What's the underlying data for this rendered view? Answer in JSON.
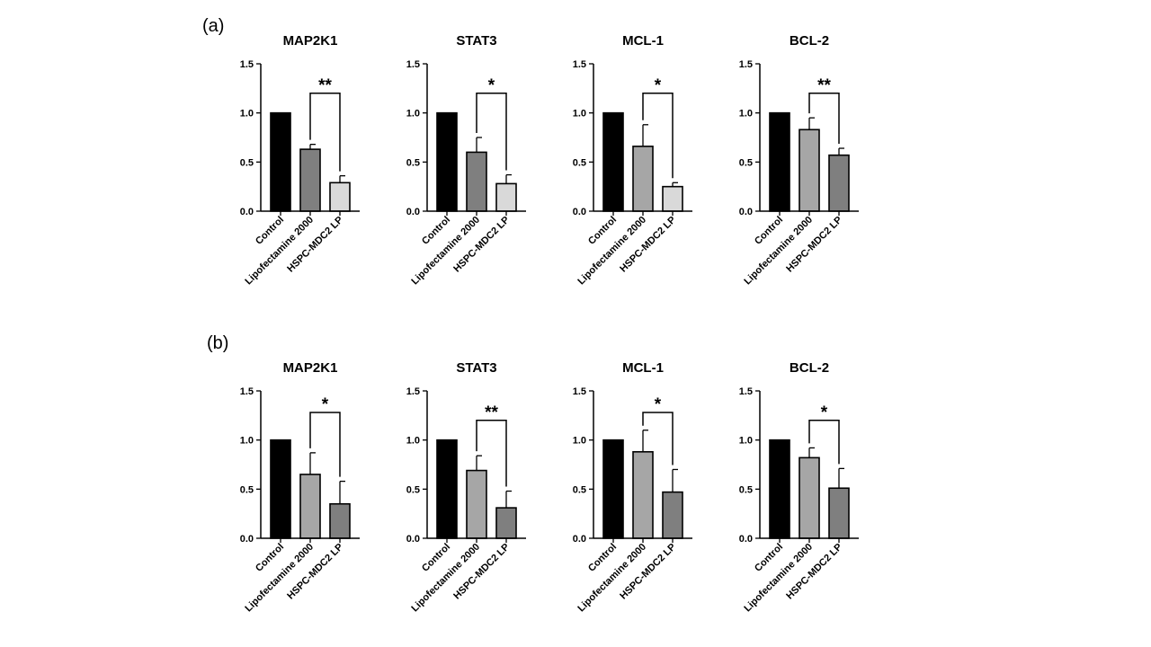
{
  "panels": [
    {
      "label": "(a)"
    },
    {
      "label": "(b)"
    }
  ],
  "categories": [
    "Control",
    "Lipofectamine 2000",
    "HSPC-MDC2 LP"
  ],
  "yticks": [
    "0.0",
    "0.5",
    "1.0",
    "1.5"
  ],
  "chart_data": [
    {
      "type": "bar",
      "panel": "(a)",
      "title": "MAP2K1",
      "categories": [
        "Control",
        "Lipofectamine 2000",
        "HSPC-MDC2 LP"
      ],
      "values": [
        1.0,
        0.63,
        0.29
      ],
      "errors": [
        0,
        0.05,
        0.07
      ],
      "colors": [
        "#000000",
        "#7f7f7f",
        "#d9d9d9"
      ],
      "ylim": [
        0,
        1.5
      ],
      "significance": {
        "from": 1,
        "to": 2,
        "label": "**",
        "y": 1.2
      }
    },
    {
      "type": "bar",
      "panel": "(a)",
      "title": "STAT3",
      "categories": [
        "Control",
        "Lipofectamine 2000",
        "HSPC-MDC2 LP"
      ],
      "values": [
        1.0,
        0.6,
        0.28
      ],
      "errors": [
        0,
        0.15,
        0.09
      ],
      "colors": [
        "#000000",
        "#7f7f7f",
        "#d9d9d9"
      ],
      "ylim": [
        0,
        1.5
      ],
      "significance": {
        "from": 1,
        "to": 2,
        "label": "*",
        "y": 1.2
      }
    },
    {
      "type": "bar",
      "panel": "(a)",
      "title": "MCL-1",
      "categories": [
        "Control",
        "Lipofectamine 2000",
        "HSPC-MDC2 LP"
      ],
      "values": [
        1.0,
        0.66,
        0.25
      ],
      "errors": [
        0,
        0.22,
        0.04
      ],
      "colors": [
        "#000000",
        "#a6a6a6",
        "#d9d9d9"
      ],
      "ylim": [
        0,
        1.5
      ],
      "significance": {
        "from": 1,
        "to": 2,
        "label": "*",
        "y": 1.2
      }
    },
    {
      "type": "bar",
      "panel": "(a)",
      "title": "BCL-2",
      "categories": [
        "Control",
        "Lipofectamine 2000",
        "HSPC-MDC2 LP"
      ],
      "values": [
        1.0,
        0.83,
        0.57
      ],
      "errors": [
        0,
        0.12,
        0.07
      ],
      "colors": [
        "#000000",
        "#a6a6a6",
        "#7f7f7f"
      ],
      "ylim": [
        0,
        1.5
      ],
      "significance": {
        "from": 1,
        "to": 2,
        "label": "**",
        "y": 1.2
      }
    },
    {
      "type": "bar",
      "panel": "(b)",
      "title": "MAP2K1",
      "categories": [
        "Control",
        "Lipofectamine 2000",
        "HSPC-MDC2 LP"
      ],
      "values": [
        1.0,
        0.65,
        0.35
      ],
      "errors": [
        0,
        0.22,
        0.23
      ],
      "colors": [
        "#000000",
        "#a6a6a6",
        "#7f7f7f"
      ],
      "ylim": [
        0,
        1.5
      ],
      "significance": {
        "from": 1,
        "to": 2,
        "label": "*",
        "y": 1.28
      }
    },
    {
      "type": "bar",
      "panel": "(b)",
      "title": "STAT3",
      "categories": [
        "Control",
        "Lipofectamine 2000",
        "HSPC-MDC2 LP"
      ],
      "values": [
        1.0,
        0.69,
        0.31
      ],
      "errors": [
        0,
        0.15,
        0.17
      ],
      "colors": [
        "#000000",
        "#a6a6a6",
        "#7f7f7f"
      ],
      "ylim": [
        0,
        1.5
      ],
      "significance": {
        "from": 1,
        "to": 2,
        "label": "**",
        "y": 1.2
      }
    },
    {
      "type": "bar",
      "panel": "(b)",
      "title": "MCL-1",
      "categories": [
        "Control",
        "Lipofectamine 2000",
        "HSPC-MDC2 LP"
      ],
      "values": [
        1.0,
        0.88,
        0.47
      ],
      "errors": [
        0,
        0.22,
        0.23
      ],
      "colors": [
        "#000000",
        "#a6a6a6",
        "#7f7f7f"
      ],
      "ylim": [
        0,
        1.5
      ],
      "significance": {
        "from": 1,
        "to": 2,
        "label": "*",
        "y": 1.28
      }
    },
    {
      "type": "bar",
      "panel": "(b)",
      "title": "BCL-2",
      "categories": [
        "Control",
        "Lipofectamine 2000",
        "HSPC-MDC2 LP"
      ],
      "values": [
        1.0,
        0.82,
        0.51
      ],
      "errors": [
        0,
        0.1,
        0.2
      ],
      "colors": [
        "#000000",
        "#a6a6a6",
        "#7f7f7f"
      ],
      "ylim": [
        0,
        1.5
      ],
      "significance": {
        "from": 1,
        "to": 2,
        "label": "*",
        "y": 1.2
      }
    }
  ]
}
